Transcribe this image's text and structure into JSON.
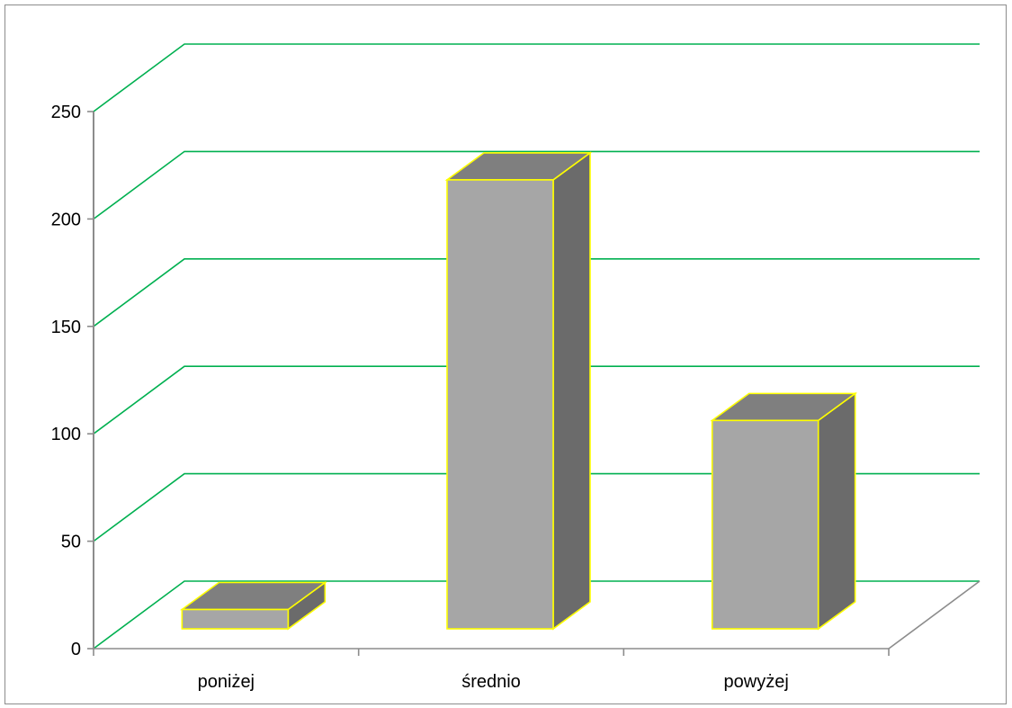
{
  "chart_data": {
    "type": "bar",
    "categories": [
      "poniżej",
      "średnio",
      "powyżej"
    ],
    "values": [
      9,
      209,
      97
    ],
    "title": "",
    "xlabel": "",
    "ylabel": "",
    "ylim": [
      0,
      250
    ],
    "yticks": [
      0,
      50,
      100,
      150,
      200,
      250
    ],
    "ytick_labels": [
      "0",
      "50",
      "100",
      "150",
      "200",
      "250"
    ],
    "grid": true,
    "legend": "none",
    "three_d": true,
    "colors": {
      "bar_front": "#a6a6a6",
      "bar_top": "#7f7f7f",
      "bar_side": "#6b6b6b",
      "bar_edge": "#ffff00",
      "gridline": "#00b050",
      "axis": "#8c8c8c"
    }
  }
}
